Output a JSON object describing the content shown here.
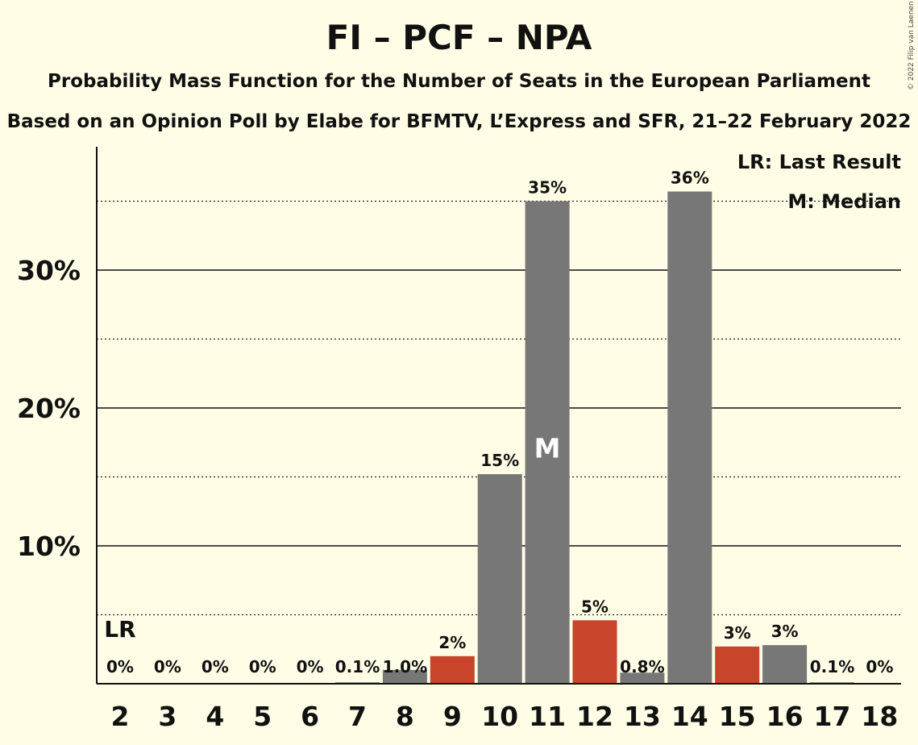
{
  "title": "FI – PCF – NPA",
  "subtitle": "Probability Mass Function for the Number of Seats in the European Parliament",
  "subtitle2": "Based on an Opinion Poll by Elabe for BFMTV, L’Express and SFR, 21–22 February 2022",
  "copyright": "© 2022 Filip van Laenen",
  "legend": {
    "lr": "LR: Last Result",
    "median": "M: Median"
  },
  "colors": {
    "background": "#fffde6",
    "bar": "#777777",
    "highlight": "#c8442a"
  },
  "chart_data": {
    "type": "bar",
    "categories": [
      "2",
      "3",
      "4",
      "5",
      "6",
      "7",
      "8",
      "9",
      "10",
      "11",
      "12",
      "13",
      "14",
      "15",
      "16",
      "17",
      "18"
    ],
    "values": [
      0,
      0,
      0,
      0,
      0,
      0.1,
      1.0,
      2,
      15.2,
      35,
      4.6,
      0.8,
      35.7,
      2.7,
      2.8,
      0.1,
      0
    ],
    "labels": [
      "0%",
      "0%",
      "0%",
      "0%",
      "0%",
      "0.1%",
      "1.0%",
      "2%",
      "15%",
      "35%",
      "5%",
      "0.8%",
      "36%",
      "3%",
      "3%",
      "0.1%",
      "0%"
    ],
    "highlight": [
      false,
      false,
      false,
      false,
      false,
      false,
      false,
      true,
      false,
      false,
      true,
      false,
      false,
      true,
      false,
      false,
      false
    ],
    "yticks": [
      10,
      20,
      30
    ],
    "ytick_labels": [
      "10%",
      "20%",
      "30%"
    ],
    "ylim": [
      0,
      39
    ],
    "last_result_seat": "2",
    "last_result_label": "LR",
    "median_seat": "11",
    "median_label": "M"
  }
}
